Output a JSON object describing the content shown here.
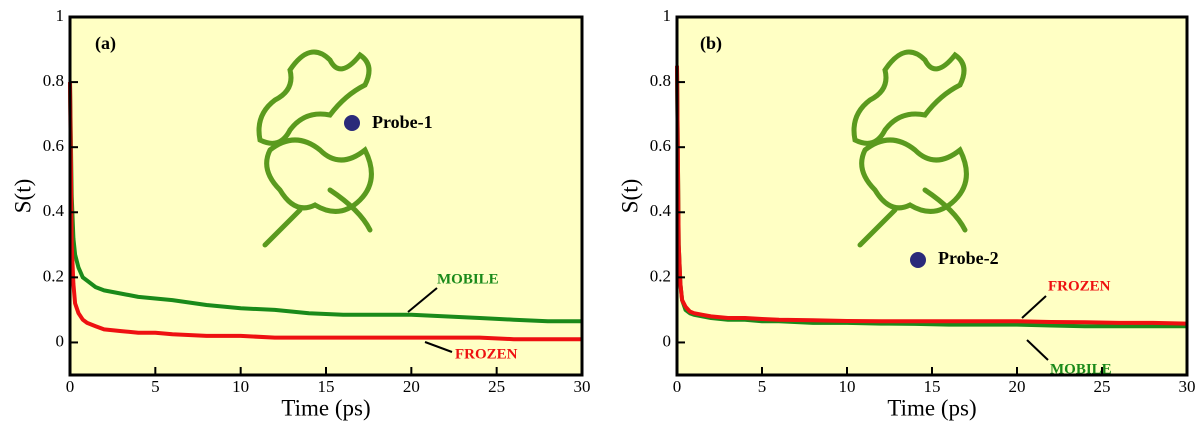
{
  "chart_data": [
    {
      "type": "line",
      "panel_label": "(a)",
      "probe_label": "Probe-1",
      "xlabel": "Time (ps)",
      "ylabel": "S(t)",
      "x": [
        0,
        0.1,
        0.2,
        0.3,
        0.5,
        0.75,
        1,
        1.5,
        2,
        3,
        4,
        5,
        6,
        8,
        10,
        12,
        14,
        16,
        18,
        20,
        22,
        24,
        26,
        28,
        30
      ],
      "series": [
        {
          "name": "MOBILE",
          "color": "#1a8a1a",
          "values": [
            0.8,
            0.45,
            0.32,
            0.27,
            0.23,
            0.2,
            0.19,
            0.17,
            0.16,
            0.15,
            0.14,
            0.135,
            0.13,
            0.115,
            0.105,
            0.1,
            0.09,
            0.085,
            0.085,
            0.085,
            0.08,
            0.075,
            0.07,
            0.065,
            0.065
          ]
        },
        {
          "name": "FROZEN",
          "color": "#ee1111",
          "values": [
            0.8,
            0.3,
            0.18,
            0.12,
            0.09,
            0.07,
            0.06,
            0.05,
            0.04,
            0.035,
            0.03,
            0.03,
            0.025,
            0.02,
            0.02,
            0.015,
            0.015,
            0.015,
            0.015,
            0.015,
            0.015,
            0.015,
            0.01,
            0.01,
            0.01
          ]
        }
      ],
      "xlim": [
        0,
        30
      ],
      "ylim": [
        -0.1,
        1
      ],
      "xticks": [
        0,
        5,
        10,
        15,
        20,
        25,
        30
      ],
      "yticks": [
        0,
        0.2,
        0.4,
        0.6,
        0.8,
        1
      ]
    },
    {
      "type": "line",
      "panel_label": "(b)",
      "probe_label": "Probe-2",
      "xlabel": "Time (ps)",
      "ylabel": "S(t)",
      "x": [
        0,
        0.1,
        0.2,
        0.3,
        0.5,
        0.75,
        1,
        1.5,
        2,
        3,
        4,
        5,
        6,
        8,
        10,
        12,
        14,
        16,
        18,
        20,
        22,
        24,
        26,
        28,
        30
      ],
      "series": [
        {
          "name": "MOBILE",
          "color": "#1a8a1a",
          "values": [
            0.85,
            0.3,
            0.18,
            0.13,
            0.1,
            0.09,
            0.085,
            0.08,
            0.075,
            0.07,
            0.07,
            0.065,
            0.065,
            0.06,
            0.06,
            0.058,
            0.057,
            0.055,
            0.055,
            0.055,
            0.052,
            0.05,
            0.05,
            0.05,
            0.05
          ]
        },
        {
          "name": "FROZEN",
          "color": "#ee1111",
          "values": [
            0.85,
            0.3,
            0.18,
            0.13,
            0.11,
            0.095,
            0.09,
            0.085,
            0.08,
            0.075,
            0.075,
            0.072,
            0.07,
            0.068,
            0.066,
            0.065,
            0.065,
            0.065,
            0.065,
            0.065,
            0.063,
            0.062,
            0.06,
            0.06,
            0.058
          ]
        }
      ],
      "xlim": [
        0,
        30
      ],
      "ylim": [
        -0.1,
        1
      ],
      "xticks": [
        0,
        5,
        10,
        15,
        20,
        25,
        30
      ],
      "yticks": [
        0,
        0.2,
        0.4,
        0.6,
        0.8,
        1
      ]
    }
  ]
}
